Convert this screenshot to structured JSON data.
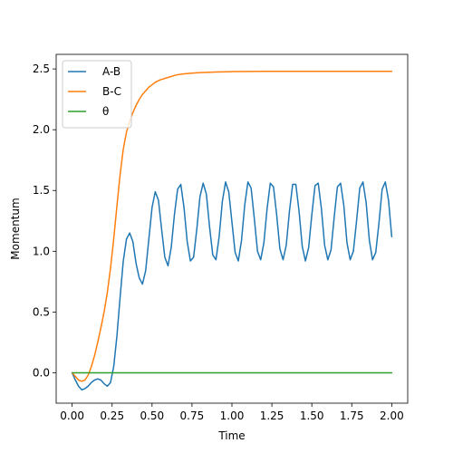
{
  "chart_data": {
    "type": "line",
    "title": "",
    "xlabel": "Time",
    "ylabel": "Momentum",
    "xlim": [
      -0.1,
      2.1
    ],
    "ylim": [
      -0.25,
      2.62
    ],
    "xticks": [
      0.0,
      0.25,
      0.5,
      0.75,
      1.0,
      1.25,
      1.5,
      1.75,
      2.0
    ],
    "xtick_labels": [
      "0.00",
      "0.25",
      "0.50",
      "0.75",
      "1.00",
      "1.25",
      "1.50",
      "1.75",
      "2.00"
    ],
    "yticks": [
      0.0,
      0.5,
      1.0,
      1.5,
      2.0,
      2.5
    ],
    "ytick_labels": [
      "0.0",
      "0.5",
      "1.0",
      "1.5",
      "2.0",
      "2.5"
    ],
    "grid": false,
    "legend_position": "top-left",
    "series": [
      {
        "name": "A-B",
        "color": "#1f77b4",
        "x": [
          0.0,
          0.02,
          0.04,
          0.06,
          0.08,
          0.1,
          0.12,
          0.14,
          0.16,
          0.18,
          0.2,
          0.22,
          0.24,
          0.26,
          0.28,
          0.3,
          0.32,
          0.34,
          0.36,
          0.38,
          0.4,
          0.42,
          0.44,
          0.46,
          0.48,
          0.5,
          0.52,
          0.54,
          0.56,
          0.58,
          0.6,
          0.62,
          0.64,
          0.66,
          0.68,
          0.7,
          0.72,
          0.74,
          0.76,
          0.78,
          0.8,
          0.82,
          0.84,
          0.86,
          0.88,
          0.9,
          0.92,
          0.94,
          0.96,
          0.98,
          1.0,
          1.02,
          1.04,
          1.06,
          1.08,
          1.1,
          1.12,
          1.14,
          1.16,
          1.18,
          1.2,
          1.22,
          1.24,
          1.26,
          1.28,
          1.3,
          1.32,
          1.34,
          1.36,
          1.38,
          1.4,
          1.42,
          1.44,
          1.46,
          1.48,
          1.5,
          1.52,
          1.54,
          1.56,
          1.58,
          1.6,
          1.62,
          1.64,
          1.66,
          1.68,
          1.7,
          1.72,
          1.74,
          1.76,
          1.78,
          1.8,
          1.82,
          1.84,
          1.86,
          1.88,
          1.9,
          1.92,
          1.94,
          1.96,
          1.98,
          2.0
        ],
        "y": [
          0.0,
          -0.06,
          -0.11,
          -0.14,
          -0.13,
          -0.11,
          -0.08,
          -0.06,
          -0.05,
          -0.06,
          -0.09,
          -0.11,
          -0.08,
          0.05,
          0.3,
          0.62,
          0.92,
          1.1,
          1.15,
          1.08,
          0.9,
          0.78,
          0.73,
          0.84,
          1.1,
          1.36,
          1.49,
          1.42,
          1.18,
          0.95,
          0.88,
          1.03,
          1.3,
          1.51,
          1.55,
          1.36,
          1.08,
          0.92,
          0.95,
          1.18,
          1.45,
          1.56,
          1.47,
          1.2,
          0.97,
          0.93,
          1.12,
          1.41,
          1.57,
          1.49,
          1.24,
          0.99,
          0.92,
          1.09,
          1.38,
          1.57,
          1.52,
          1.27,
          1.0,
          0.93,
          1.07,
          1.35,
          1.56,
          1.53,
          1.3,
          1.02,
          0.93,
          1.05,
          1.33,
          1.55,
          1.55,
          1.33,
          1.04,
          0.92,
          1.03,
          1.3,
          1.54,
          1.56,
          1.35,
          1.05,
          0.93,
          1.01,
          1.28,
          1.53,
          1.56,
          1.38,
          1.07,
          0.93,
          1.0,
          1.25,
          1.52,
          1.57,
          1.4,
          1.09,
          0.93,
          0.99,
          1.23,
          1.51,
          1.57,
          1.42,
          1.12
        ]
      },
      {
        "name": "B-C",
        "color": "#ff7f0e",
        "x": [
          0.0,
          0.02,
          0.04,
          0.06,
          0.08,
          0.1,
          0.12,
          0.14,
          0.16,
          0.18,
          0.2,
          0.22,
          0.24,
          0.26,
          0.28,
          0.3,
          0.32,
          0.34,
          0.36,
          0.38,
          0.4,
          0.42,
          0.44,
          0.46,
          0.48,
          0.5,
          0.52,
          0.55,
          0.6,
          0.65,
          0.7,
          0.75,
          0.8,
          0.9,
          1.0,
          1.2,
          1.4,
          1.6,
          1.8,
          2.0
        ],
        "y": [
          0.0,
          -0.03,
          -0.06,
          -0.07,
          -0.06,
          -0.02,
          0.05,
          0.14,
          0.25,
          0.37,
          0.5,
          0.66,
          0.86,
          1.1,
          1.37,
          1.63,
          1.84,
          1.98,
          2.07,
          2.14,
          2.2,
          2.25,
          2.29,
          2.32,
          2.35,
          2.37,
          2.39,
          2.41,
          2.43,
          2.45,
          2.46,
          2.465,
          2.47,
          2.475,
          2.478,
          2.48,
          2.48,
          2.48,
          2.48,
          2.48
        ]
      },
      {
        "name": "θ",
        "color": "#2ca02c",
        "x": [
          0.0,
          2.0
        ],
        "y": [
          0.0,
          0.0
        ]
      }
    ]
  }
}
